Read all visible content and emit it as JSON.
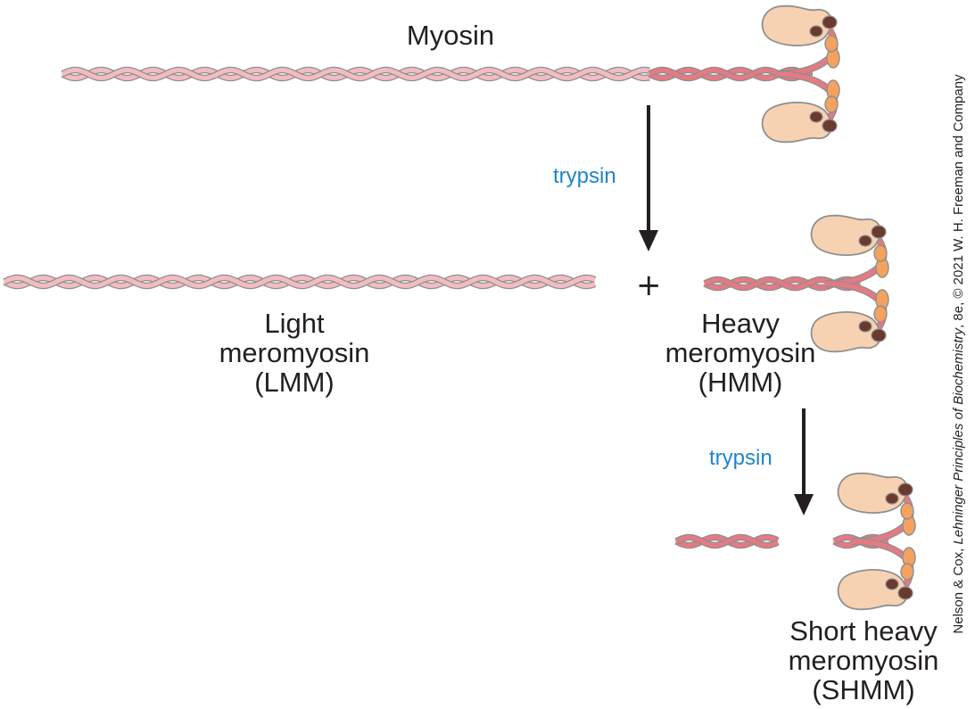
{
  "labels": {
    "myosin": "Myosin",
    "lmm": "Light\nmeromyosin\n(LMM)",
    "hmm": "Heavy\nmeromyosin\n(HMM)",
    "shmm": "Short heavy\nmeromyosin\n(SHMM)"
  },
  "enzyme": {
    "step1": "trypsin",
    "step2": "trypsin"
  },
  "plus_sign": "+",
  "credit": {
    "prefix": "Nelson & Cox, ",
    "title": "Lehninger Principles of Biochemistry",
    "suffix": ", 8e, © 2021 W. H. Freeman and Company"
  },
  "colors": {
    "light_chain_strand": "#f2bcc0",
    "heavy_chain_strand": "#e47a83",
    "head": "#f7d2b2",
    "neck_light_chain": "#f4a25e",
    "essential_light_chain": "#6b3a2e",
    "outline": "#8f8f8f",
    "enzyme_text": "#1f86c6"
  }
}
